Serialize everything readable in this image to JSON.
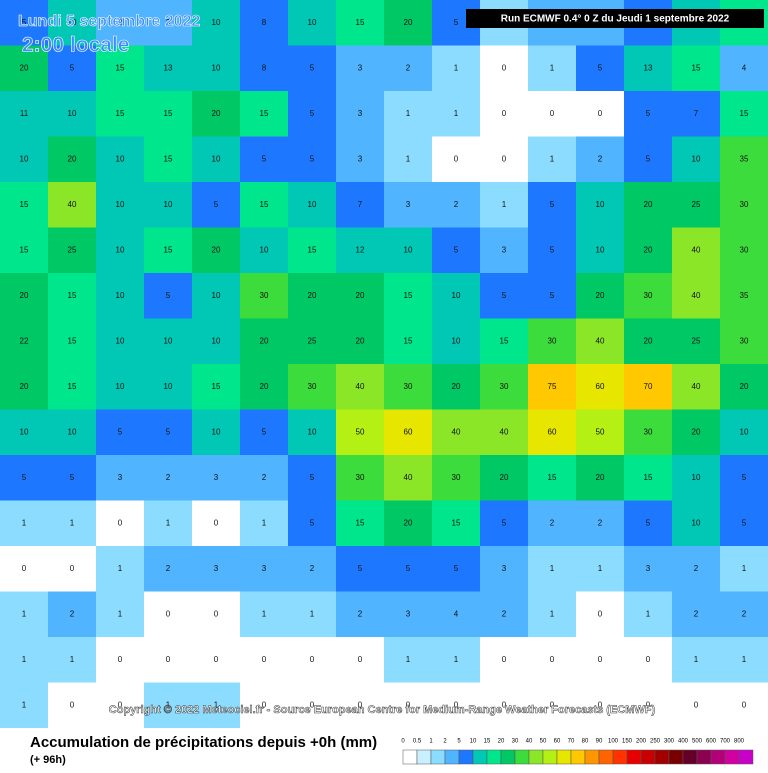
{
  "header": {
    "date_line": "Lundi 5 septembre 2022",
    "time_line": "2:00 locale",
    "run_info": "Run ECMWF 0.4° 0 Z du Jeudi 1 septembre 2022"
  },
  "copyright": "Copyright © 2022 Meteociel.fr - Source European Centre for Medium-Range Weather Forecasts (ECMWF)",
  "legend": {
    "title": "Accumulation de précipitations depuis +0h (mm)",
    "subtitle": "(+ 96h)",
    "ticks": [
      0,
      0.5,
      1,
      2,
      5,
      10,
      15,
      20,
      30,
      40,
      50,
      60,
      70,
      80,
      90,
      100,
      150,
      200,
      250,
      300,
      400,
      500,
      600,
      700,
      800
    ],
    "colors": [
      "#ffffff",
      "#c8f0ff",
      "#8cdcff",
      "#50b4ff",
      "#1e78ff",
      "#00c8b4",
      "#00e68c",
      "#00c864",
      "#3cdc3c",
      "#8ce628",
      "#b4f014",
      "#e6e600",
      "#ffc800",
      "#ff9600",
      "#ff6400",
      "#ff3200",
      "#e60000",
      "#c80000",
      "#a00000",
      "#780000",
      "#640028",
      "#8c0050",
      "#b40078",
      "#d200a0",
      "#c800c8"
    ]
  },
  "grid": {
    "rows": [
      [
        5,
        10,
        2,
        3,
        10,
        8,
        10,
        15,
        20,
        5,
        1,
        2,
        3,
        5,
        13,
        15
      ],
      [
        20,
        5,
        15,
        13,
        10,
        8,
        5,
        3,
        2,
        1,
        0,
        1,
        5,
        13,
        15,
        4
      ],
      [
        11,
        10,
        15,
        15,
        20,
        15,
        5,
        3,
        1,
        1,
        0,
        0,
        0,
        5,
        7,
        15
      ],
      [
        10,
        20,
        10,
        15,
        10,
        5,
        5,
        3,
        1,
        0,
        0,
        1,
        2,
        5,
        10,
        35
      ],
      [
        15,
        40,
        10,
        10,
        5,
        15,
        10,
        7,
        3,
        2,
        1,
        5,
        10,
        20,
        25,
        30
      ],
      [
        15,
        25,
        10,
        15,
        20,
        10,
        15,
        12,
        10,
        5,
        3,
        5,
        10,
        20,
        40,
        30
      ],
      [
        20,
        15,
        10,
        5,
        10,
        30,
        20,
        20,
        15,
        10,
        5,
        5,
        20,
        30,
        40,
        35
      ],
      [
        22,
        15,
        10,
        10,
        10,
        20,
        25,
        20,
        15,
        10,
        15,
        30,
        40,
        20,
        25,
        30
      ],
      [
        20,
        15,
        10,
        10,
        15,
        20,
        30,
        40,
        30,
        20,
        30,
        75,
        60,
        70,
        40,
        20
      ],
      [
        10,
        10,
        5,
        5,
        10,
        5,
        10,
        50,
        60,
        40,
        40,
        60,
        50,
        30,
        20,
        10
      ],
      [
        5,
        5,
        3,
        2,
        3,
        2,
        5,
        30,
        40,
        30,
        20,
        15,
        20,
        15,
        10,
        5
      ],
      [
        1,
        1,
        0,
        1,
        0,
        1,
        5,
        15,
        20,
        15,
        5,
        2,
        2,
        5,
        10,
        5
      ],
      [
        0,
        0,
        1,
        2,
        3,
        3,
        2,
        5,
        5,
        5,
        3,
        1,
        1,
        3,
        2,
        1
      ],
      [
        1,
        2,
        1,
        0,
        0,
        1,
        1,
        2,
        3,
        4,
        2,
        1,
        0,
        1,
        2,
        2
      ],
      [
        1,
        1,
        0,
        0,
        0,
        0,
        0,
        0,
        1,
        1,
        0,
        0,
        0,
        0,
        1,
        1
      ],
      [
        1,
        0,
        0,
        1,
        1,
        0,
        0,
        0,
        0,
        0,
        0,
        0,
        0,
        0,
        0,
        0
      ]
    ]
  }
}
